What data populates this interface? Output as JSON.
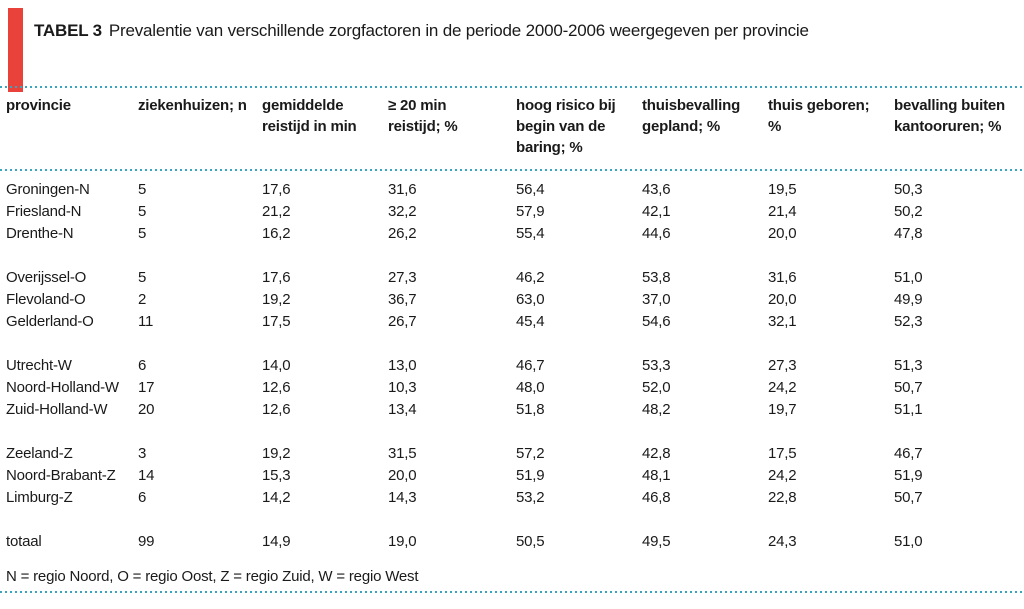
{
  "page": {
    "title_label": "TABEL 3",
    "title_text": "Prevalentie van verschillende zorgfactoren in de periode 2000-2006 weergegeven per provincie",
    "footnote": "N = regio Noord, O = regio Oost, Z = regio Zuid, W = regio West",
    "colors": {
      "accent_bar": "#e8423a",
      "divider_dots": "#3aa5c0",
      "text": "#1a1a1a"
    }
  },
  "table": {
    "columns": [
      {
        "label": "provincie",
        "lines": [
          "provincie"
        ]
      },
      {
        "label": "ziekenhuizen; n",
        "lines": [
          "ziekenhuizen; n"
        ]
      },
      {
        "label": "gemiddelde reistijd in min",
        "lines": [
          "gemiddelde",
          "reistijd in min"
        ]
      },
      {
        "label": "≥ 20 min reistijd; %",
        "lines": [
          "≥ 20 min",
          "reistijd; %"
        ]
      },
      {
        "label": "hoog risico bij begin van de baring; %",
        "lines": [
          "hoog risico bij",
          "begin van de",
          "baring; %"
        ]
      },
      {
        "label": "thuisbevalling gepland; %",
        "lines": [
          "thuisbevalling",
          "gepland; %"
        ]
      },
      {
        "label": "thuis geboren; %",
        "lines": [
          "thuis geboren;",
          "%"
        ]
      },
      {
        "label": "bevalling buiten kantooruren; %",
        "lines": [
          "bevalling buiten",
          "kantooruren; %"
        ]
      }
    ],
    "row_groups": [
      [
        [
          "Groningen-N",
          "5",
          "17,6",
          "31,6",
          "56,4",
          "43,6",
          "19,5",
          "50,3"
        ],
        [
          "Friesland-N",
          "5",
          "21,2",
          "32,2",
          "57,9",
          "42,1",
          "21,4",
          "50,2"
        ],
        [
          "Drenthe-N",
          "5",
          "16,2",
          "26,2",
          "55,4",
          "44,6",
          "20,0",
          "47,8"
        ]
      ],
      [
        [
          "Overijssel-O",
          "5",
          "17,6",
          "27,3",
          "46,2",
          "53,8",
          "31,6",
          "51,0"
        ],
        [
          "Flevoland-O",
          "2",
          "19,2",
          "36,7",
          "63,0",
          "37,0",
          "20,0",
          "49,9"
        ],
        [
          "Gelderland-O",
          "11",
          "17,5",
          "26,7",
          "45,4",
          "54,6",
          "32,1",
          "52,3"
        ]
      ],
      [
        [
          "Utrecht-W",
          "6",
          "14,0",
          "13,0",
          "46,7",
          "53,3",
          "27,3",
          "51,3"
        ],
        [
          "Noord-Holland-W",
          "17",
          "12,6",
          "10,3",
          "48,0",
          "52,0",
          "24,2",
          "50,7"
        ],
        [
          "Zuid-Holland-W",
          "20",
          "12,6",
          "13,4",
          "51,8",
          "48,2",
          "19,7",
          "51,1"
        ]
      ],
      [
        [
          "Zeeland-Z",
          "3",
          "19,2",
          "31,5",
          "57,2",
          "42,8",
          "17,5",
          "46,7"
        ],
        [
          "Noord-Brabant-Z",
          "14",
          "15,3",
          "20,0",
          "51,9",
          "48,1",
          "24,2",
          "51,9"
        ],
        [
          "Limburg-Z",
          "6",
          "14,2",
          "14,3",
          "53,2",
          "46,8",
          "22,8",
          "50,7"
        ]
      ]
    ],
    "total_row": [
      "totaal",
      "99",
      "14,9",
      "19,0",
      "50,5",
      "49,5",
      "24,3",
      "51,0"
    ]
  }
}
